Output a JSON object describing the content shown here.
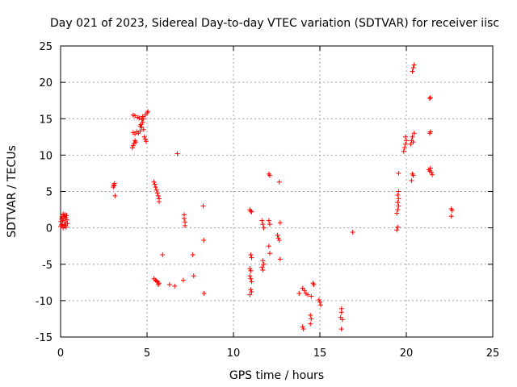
{
  "chart_data": {
    "type": "scatter",
    "title": "Day 021 of 2023, Sidereal Day-to-day VTEC variation (SDTVAR) for receiver iisc",
    "xlabel": "GPS time / hours",
    "ylabel": "SDTVAR / TECUs",
    "xlim": [
      0,
      25
    ],
    "ylim": [
      -15,
      25
    ],
    "xticks": [
      0,
      5,
      10,
      15,
      20,
      25
    ],
    "yticks": [
      -15,
      -10,
      -5,
      0,
      5,
      10,
      15,
      20,
      25
    ],
    "grid": true,
    "marker": "+",
    "colors": {
      "points": "#ff0000",
      "axes": "#000000",
      "grid": "#a0a0a0"
    },
    "series": [
      {
        "points": [
          [
            0.0,
            0.2
          ],
          [
            0.02,
            0.9
          ],
          [
            0.05,
            1.2
          ],
          [
            0.08,
            1.5
          ],
          [
            0.1,
            0.5
          ],
          [
            0.12,
            1.0
          ],
          [
            0.15,
            0.0
          ],
          [
            0.18,
            1.3
          ],
          [
            0.2,
            1.6
          ],
          [
            0.22,
            0.3
          ],
          [
            0.25,
            1.8
          ],
          [
            0.27,
            0.8
          ],
          [
            0.3,
            1.4
          ],
          [
            0.32,
            0.1
          ],
          [
            0.35,
            1.7
          ],
          [
            0.37,
            1.1
          ],
          [
            0.4,
            0.6
          ],
          [
            0.05,
            0.4
          ],
          [
            0.15,
            1.9
          ],
          [
            0.3,
            0.4
          ],
          [
            3.05,
            5.6
          ],
          [
            3.08,
            5.9
          ],
          [
            3.12,
            6.1
          ],
          [
            3.1,
            5.8
          ],
          [
            3.15,
            4.4
          ],
          [
            4.15,
            11.0
          ],
          [
            4.2,
            11.3
          ],
          [
            4.25,
            11.6
          ],
          [
            4.3,
            12.0
          ],
          [
            4.35,
            11.8
          ],
          [
            4.3,
            12.9
          ],
          [
            4.4,
            13.2
          ],
          [
            4.2,
            13.1
          ],
          [
            4.5,
            13.0
          ],
          [
            4.6,
            13.3
          ],
          [
            4.7,
            13.8
          ],
          [
            4.65,
            14.2
          ],
          [
            4.75,
            14.5
          ],
          [
            4.8,
            13.5
          ],
          [
            4.85,
            12.5
          ],
          [
            4.9,
            12.2
          ],
          [
            4.95,
            11.9
          ],
          [
            4.8,
            15.0
          ],
          [
            4.9,
            15.5
          ],
          [
            5.0,
            15.8
          ],
          [
            5.05,
            16.0
          ],
          [
            4.7,
            14.9
          ],
          [
            4.75,
            15.3
          ],
          [
            4.6,
            14.0
          ],
          [
            4.2,
            15.5
          ],
          [
            4.3,
            15.4
          ],
          [
            4.45,
            15.2
          ],
          [
            4.55,
            15.1
          ],
          [
            5.4,
            6.3
          ],
          [
            5.45,
            6.0
          ],
          [
            5.5,
            5.6
          ],
          [
            5.55,
            5.2
          ],
          [
            5.6,
            4.8
          ],
          [
            5.65,
            4.4
          ],
          [
            5.7,
            4.0
          ],
          [
            5.7,
            3.6
          ],
          [
            5.4,
            -7.0
          ],
          [
            5.5,
            -7.2
          ],
          [
            5.6,
            -7.4
          ],
          [
            5.7,
            -7.6
          ],
          [
            5.55,
            -7.3
          ],
          [
            5.65,
            -7.8
          ],
          [
            5.9,
            -3.7
          ],
          [
            6.3,
            -7.8
          ],
          [
            6.6,
            -8.0
          ],
          [
            6.75,
            10.2
          ],
          [
            7.1,
            -7.2
          ],
          [
            7.15,
            1.8
          ],
          [
            7.15,
            1.3
          ],
          [
            7.2,
            0.8
          ],
          [
            7.2,
            0.3
          ],
          [
            7.65,
            -3.7
          ],
          [
            7.7,
            -6.6
          ],
          [
            8.25,
            3.0
          ],
          [
            8.28,
            -1.7
          ],
          [
            8.3,
            -9.0
          ],
          [
            10.95,
            2.5
          ],
          [
            11.0,
            2.3
          ],
          [
            11.05,
            2.2
          ],
          [
            11.0,
            -3.7
          ],
          [
            11.05,
            -4.1
          ],
          [
            10.95,
            -5.6
          ],
          [
            11.0,
            -5.9
          ],
          [
            10.95,
            -6.6
          ],
          [
            11.0,
            -7.0
          ],
          [
            11.05,
            -7.4
          ],
          [
            11.0,
            -8.5
          ],
          [
            11.05,
            -8.8
          ],
          [
            10.95,
            -9.2
          ],
          [
            11.65,
            1.0
          ],
          [
            11.7,
            0.5
          ],
          [
            11.75,
            0.0
          ],
          [
            11.7,
            -4.5
          ],
          [
            11.75,
            -5.0
          ],
          [
            11.65,
            -5.4
          ],
          [
            11.7,
            -5.8
          ],
          [
            12.05,
            7.4
          ],
          [
            12.1,
            7.2
          ],
          [
            12.05,
            1.0
          ],
          [
            12.1,
            0.5
          ],
          [
            12.05,
            -2.5
          ],
          [
            12.1,
            -3.5
          ],
          [
            12.55,
            -1.0
          ],
          [
            12.6,
            -1.4
          ],
          [
            12.65,
            -1.7
          ],
          [
            12.7,
            0.7
          ],
          [
            12.65,
            6.3
          ],
          [
            12.7,
            -4.3
          ],
          [
            13.8,
            -9.0
          ],
          [
            14.0,
            -8.3
          ],
          [
            14.1,
            -8.6
          ],
          [
            14.2,
            -9.0
          ],
          [
            14.3,
            -9.2
          ],
          [
            14.0,
            -13.6
          ],
          [
            14.05,
            -13.9
          ],
          [
            14.45,
            -12.0
          ],
          [
            14.5,
            -12.5
          ],
          [
            14.45,
            -13.2
          ],
          [
            14.5,
            -9.4
          ],
          [
            14.6,
            -7.6
          ],
          [
            14.65,
            -7.8
          ],
          [
            14.95,
            -9.9
          ],
          [
            15.0,
            -10.2
          ],
          [
            15.05,
            -10.6
          ],
          [
            16.25,
            -11.1
          ],
          [
            16.25,
            -11.6
          ],
          [
            16.2,
            -12.3
          ],
          [
            16.3,
            -12.6
          ],
          [
            16.25,
            -13.9
          ],
          [
            16.9,
            -0.6
          ],
          [
            19.45,
            -0.3
          ],
          [
            19.5,
            0.1
          ],
          [
            19.45,
            2.0
          ],
          [
            19.5,
            2.5
          ],
          [
            19.55,
            3.0
          ],
          [
            19.5,
            3.5
          ],
          [
            19.55,
            4.0
          ],
          [
            19.5,
            4.5
          ],
          [
            19.55,
            5.0
          ],
          [
            19.55,
            7.5
          ],
          [
            19.85,
            10.5
          ],
          [
            19.9,
            11.0
          ],
          [
            19.95,
            11.5
          ],
          [
            20.0,
            12.0
          ],
          [
            19.95,
            12.5
          ],
          [
            20.25,
            11.5
          ],
          [
            20.3,
            12.0
          ],
          [
            20.35,
            12.5
          ],
          [
            20.4,
            11.8
          ],
          [
            20.45,
            13.0
          ],
          [
            20.3,
            6.5
          ],
          [
            20.35,
            7.4
          ],
          [
            20.4,
            7.2
          ],
          [
            20.35,
            21.5
          ],
          [
            20.4,
            22.0
          ],
          [
            20.45,
            22.4
          ],
          [
            21.35,
            17.8
          ],
          [
            21.4,
            17.9
          ],
          [
            21.35,
            13.0
          ],
          [
            21.4,
            13.2
          ],
          [
            21.3,
            8.0
          ],
          [
            21.35,
            7.8
          ],
          [
            21.4,
            8.2
          ],
          [
            21.45,
            7.6
          ],
          [
            21.5,
            7.3
          ],
          [
            22.6,
            2.6
          ],
          [
            22.65,
            2.4
          ],
          [
            22.6,
            1.6
          ]
        ]
      }
    ]
  }
}
